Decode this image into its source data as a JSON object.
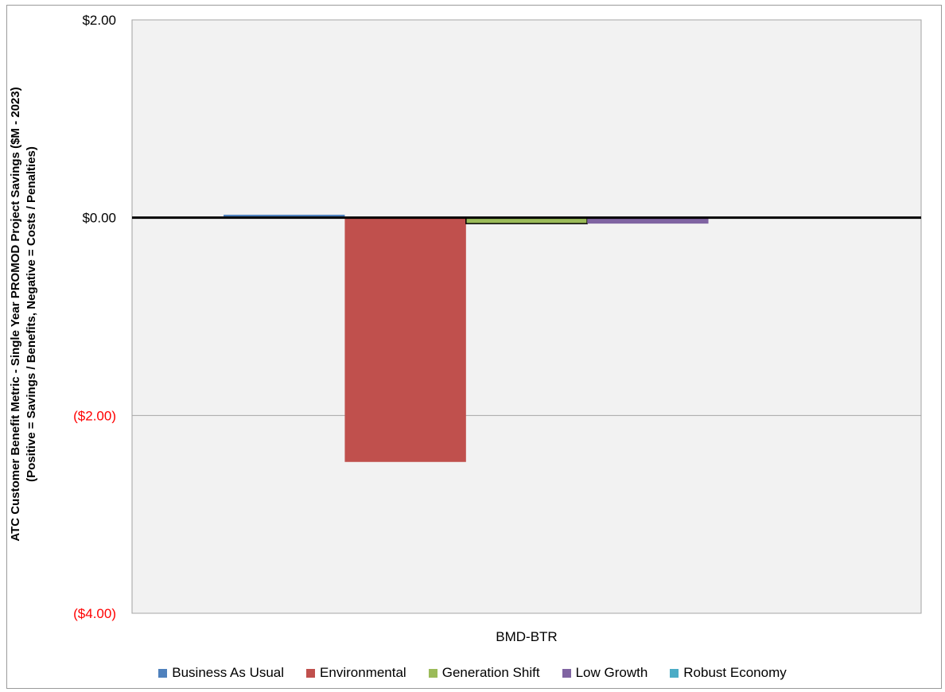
{
  "chart_data": {
    "type": "bar",
    "categories": [
      "BMD-BTR"
    ],
    "series": [
      {
        "name": "Business As Usual",
        "values": [
          0.03
        ],
        "color": "#4f81bd"
      },
      {
        "name": "Environmental",
        "values": [
          -2.47
        ],
        "color": "#c0504d"
      },
      {
        "name": "Generation Shift",
        "values": [
          -0.06
        ],
        "color": "#9bbb59"
      },
      {
        "name": "Low Growth",
        "values": [
          -0.06
        ],
        "color": "#8064a2"
      },
      {
        "name": "Robust Economy",
        "values": [
          0.0
        ],
        "color": "#4bacc6"
      }
    ],
    "ylabel_line1": "ATC Customer Benefit Metric - Single Year PROMOD Project Savings ($M - 2023)",
    "ylabel_line2": "(Positive = Savings / Benefits, Negative = Costs / Penalties)",
    "ylim": [
      -4,
      2
    ],
    "yticks": [
      {
        "value": 2,
        "label": "$2.00",
        "color": "#000000"
      },
      {
        "value": 0,
        "label": "$0.00",
        "color": "#000000"
      },
      {
        "value": -2,
        "label": "($2.00)",
        "color": "#ff0000"
      },
      {
        "value": -4,
        "label": "($4.00)",
        "color": "#ff0000"
      }
    ],
    "plot_background": "#f2f2f2",
    "gridlines": true,
    "legend_position": "bottom"
  }
}
